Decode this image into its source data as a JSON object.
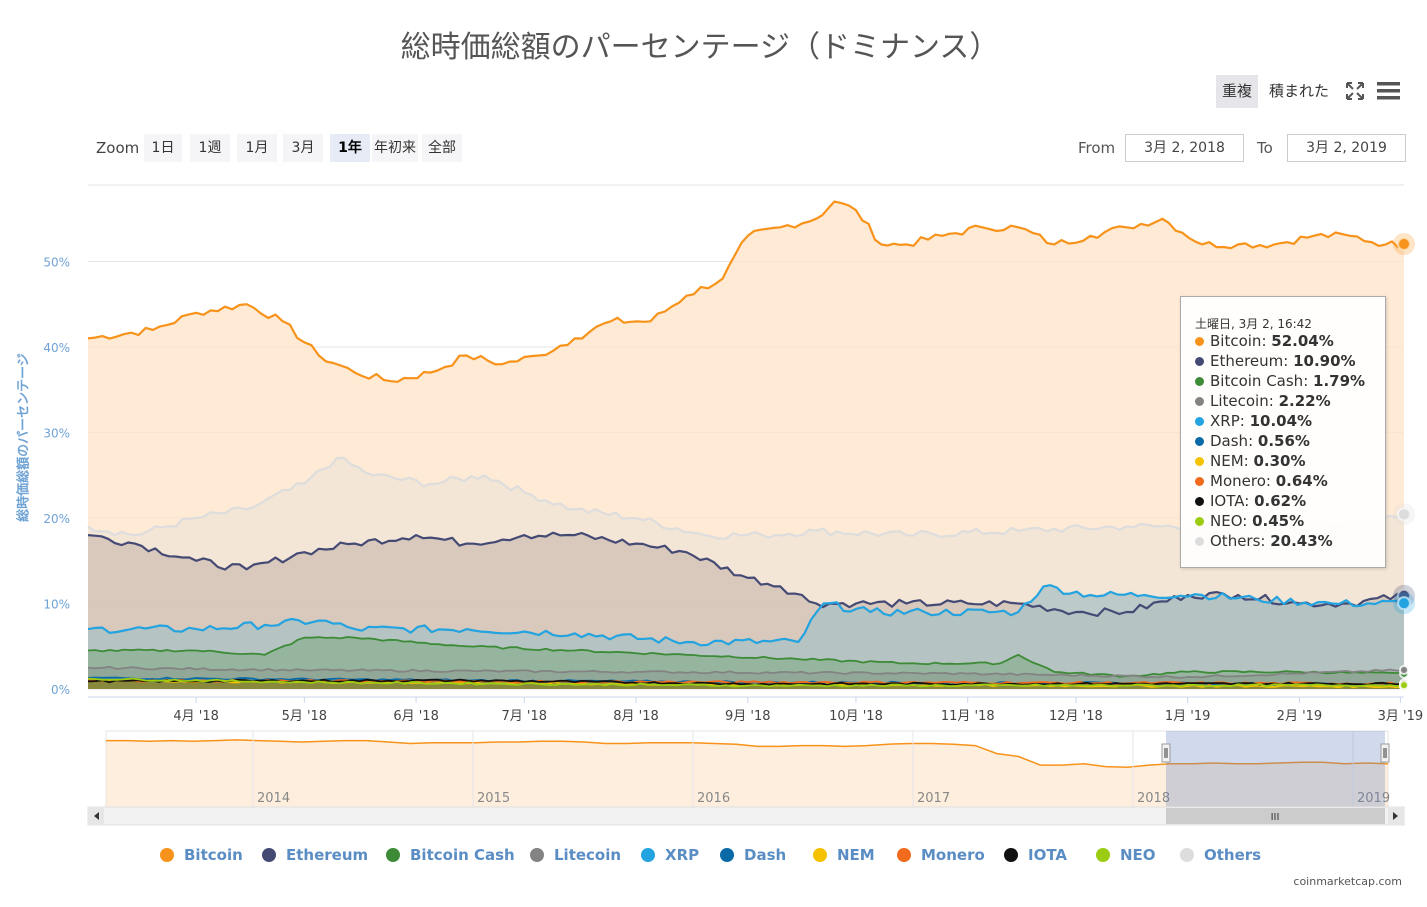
{
  "title": "総時価総額のパーセンテージ（ドミナンス）",
  "controls": {
    "overlap": "重複",
    "stacked": "積まれた"
  },
  "zoom": {
    "label": "Zoom",
    "buttons": [
      "1日",
      "1週",
      "1月",
      "3月",
      "1年",
      "年初来",
      "全部"
    ],
    "active": "1年"
  },
  "range": {
    "from_label": "From",
    "from": "3月 2, 2018",
    "to_label": "To",
    "to": "3月 2, 2019"
  },
  "navigator": {
    "years": [
      "2014",
      "2015",
      "2016",
      "2017",
      "2018",
      "2019"
    ],
    "handle_grip": "III"
  },
  "tooltip": {
    "header": "土曜日, 3月 2, 16:42",
    "rows": [
      {
        "name": "Bitcoin",
        "value": "52.04%"
      },
      {
        "name": "Ethereum",
        "value": "10.90%"
      },
      {
        "name": "Bitcoin Cash",
        "value": "1.79%"
      },
      {
        "name": "Litecoin",
        "value": "2.22%"
      },
      {
        "name": "XRP",
        "value": "10.04%"
      },
      {
        "name": "Dash",
        "value": "0.56%"
      },
      {
        "name": "NEM",
        "value": "0.30%"
      },
      {
        "name": "Monero",
        "value": "0.64%"
      },
      {
        "name": "IOTA",
        "value": "0.62%"
      },
      {
        "name": "NEO",
        "value": "0.45%"
      },
      {
        "name": "Others",
        "value": "20.43%"
      }
    ]
  },
  "credit": "coinmarketcap.com",
  "chart_data": {
    "type": "area",
    "title": "総時価総額のパーセンテージ（ドミナンス）",
    "ylabel": "総時価総額のパーセンテージ",
    "xlabel": "",
    "ylim": [
      0,
      59
    ],
    "yticks": [
      0,
      10,
      20,
      30,
      40,
      50
    ],
    "ytick_labels": [
      "0%",
      "10%",
      "20%",
      "30%",
      "40%",
      "50%"
    ],
    "x_ticks": [
      "4月 '18",
      "5月 '18",
      "6月 '18",
      "7月 '18",
      "8月 '18",
      "9月 '18",
      "10月 '18",
      "11月 '18",
      "12月 '18",
      "1月 '19",
      "2月 '19",
      "3月 '19"
    ],
    "x_range": [
      "2018-03-02",
      "2019-03-02"
    ],
    "legend_position": "bottom",
    "grid": true,
    "series": [
      {
        "name": "Bitcoin",
        "color": "#f7931a",
        "fill": "#fde3c7",
        "points": [
          [
            "2018-03-02",
            41
          ],
          [
            "2018-03-20",
            42
          ],
          [
            "2018-04-01",
            44
          ],
          [
            "2018-04-15",
            45
          ],
          [
            "2018-04-25",
            43
          ],
          [
            "2018-05-05",
            39
          ],
          [
            "2018-05-15",
            37
          ],
          [
            "2018-05-25",
            36
          ],
          [
            "2018-06-05",
            37
          ],
          [
            "2018-06-15",
            39
          ],
          [
            "2018-06-25",
            38
          ],
          [
            "2018-07-05",
            39
          ],
          [
            "2018-07-15",
            41
          ],
          [
            "2018-07-25",
            43
          ],
          [
            "2018-08-05",
            43
          ],
          [
            "2018-08-15",
            46
          ],
          [
            "2018-08-25",
            48
          ],
          [
            "2018-09-01",
            53
          ],
          [
            "2018-09-10",
            54
          ],
          [
            "2018-09-20",
            55
          ],
          [
            "2018-09-25",
            57
          ],
          [
            "2018-10-01",
            56
          ],
          [
            "2018-10-08",
            52
          ],
          [
            "2018-10-15",
            52
          ],
          [
            "2018-10-25",
            53
          ],
          [
            "2018-11-05",
            54
          ],
          [
            "2018-11-15",
            54
          ],
          [
            "2018-11-25",
            52
          ],
          [
            "2018-12-05",
            53
          ],
          [
            "2018-12-15",
            54
          ],
          [
            "2018-12-25",
            55
          ],
          [
            "2019-01-05",
            52
          ],
          [
            "2019-01-15",
            52
          ],
          [
            "2019-01-25",
            52
          ],
          [
            "2019-02-05",
            53
          ],
          [
            "2019-02-15",
            53
          ],
          [
            "2019-02-25",
            52
          ],
          [
            "2019-03-02",
            52.04
          ]
        ]
      },
      {
        "name": "Others",
        "color": "#dddddd",
        "fill": "#efe4d6",
        "points": [
          [
            "2018-03-02",
            19
          ],
          [
            "2018-03-15",
            18
          ],
          [
            "2018-04-01",
            20
          ],
          [
            "2018-04-15",
            21
          ],
          [
            "2018-05-01",
            24
          ],
          [
            "2018-05-10",
            27
          ],
          [
            "2018-05-20",
            25
          ],
          [
            "2018-06-05",
            24
          ],
          [
            "2018-06-20",
            25
          ],
          [
            "2018-07-01",
            23
          ],
          [
            "2018-07-15",
            21
          ],
          [
            "2018-08-01",
            20
          ],
          [
            "2018-08-20",
            18
          ],
          [
            "2018-09-05",
            18
          ],
          [
            "2018-09-20",
            18.5
          ],
          [
            "2018-10-15",
            18
          ],
          [
            "2018-11-15",
            18.5
          ],
          [
            "2018-12-15",
            19
          ],
          [
            "2019-01-15",
            19
          ],
          [
            "2019-02-15",
            19.5
          ],
          [
            "2019-03-02",
            20.43
          ]
        ]
      },
      {
        "name": "Ethereum",
        "color": "#454a75",
        "fill": "#cfbfb3",
        "points": [
          [
            "2018-03-02",
            18
          ],
          [
            "2018-03-15",
            17
          ],
          [
            "2018-04-01",
            15
          ],
          [
            "2018-04-15",
            14
          ],
          [
            "2018-05-01",
            16
          ],
          [
            "2018-05-15",
            17
          ],
          [
            "2018-06-01",
            18
          ],
          [
            "2018-06-15",
            17
          ],
          [
            "2018-07-01",
            18
          ],
          [
            "2018-07-15",
            18
          ],
          [
            "2018-08-01",
            17
          ],
          [
            "2018-08-15",
            16
          ],
          [
            "2018-09-01",
            13
          ],
          [
            "2018-09-10",
            12
          ],
          [
            "2018-09-20",
            10
          ],
          [
            "2018-10-01",
            10
          ],
          [
            "2018-10-15",
            10
          ],
          [
            "2018-11-01",
            10
          ],
          [
            "2018-11-15",
            10
          ],
          [
            "2018-12-01",
            9
          ],
          [
            "2018-12-15",
            9
          ],
          [
            "2019-01-01",
            11
          ],
          [
            "2019-01-15",
            11
          ],
          [
            "2019-02-01",
            10
          ],
          [
            "2019-02-15",
            10
          ],
          [
            "2019-03-02",
            10.9
          ]
        ]
      },
      {
        "name": "XRP",
        "color": "#23a3e0",
        "fill": "#a9c0c4",
        "points": [
          [
            "2018-03-02",
            7
          ],
          [
            "2018-04-01",
            7
          ],
          [
            "2018-04-20",
            7.5
          ],
          [
            "2018-05-05",
            8
          ],
          [
            "2018-05-15",
            7
          ],
          [
            "2018-06-15",
            7
          ],
          [
            "2018-07-15",
            6.5
          ],
          [
            "2018-08-15",
            5.5
          ],
          [
            "2018-09-15",
            5.5
          ],
          [
            "2018-09-22",
            10
          ],
          [
            "2018-10-05",
            9
          ],
          [
            "2018-10-20",
            9
          ],
          [
            "2018-11-15",
            9
          ],
          [
            "2018-11-22",
            12
          ],
          [
            "2018-12-05",
            11
          ],
          [
            "2018-12-20",
            11
          ],
          [
            "2019-01-05",
            11
          ],
          [
            "2019-01-20",
            10.5
          ],
          [
            "2019-02-10",
            10
          ],
          [
            "2019-03-02",
            10.04
          ]
        ]
      },
      {
        "name": "Bitcoin Cash",
        "color": "#3d8b37",
        "points": [
          [
            "2018-03-02",
            4.5
          ],
          [
            "2018-04-01",
            4.5
          ],
          [
            "2018-04-20",
            4
          ],
          [
            "2018-05-01",
            6
          ],
          [
            "2018-05-15",
            6
          ],
          [
            "2018-06-15",
            5
          ],
          [
            "2018-07-15",
            4.5
          ],
          [
            "2018-08-15",
            4
          ],
          [
            "2018-09-15",
            3.5
          ],
          [
            "2018-10-15",
            3
          ],
          [
            "2018-11-10",
            3
          ],
          [
            "2018-11-15",
            4
          ],
          [
            "2018-11-25",
            2
          ],
          [
            "2018-12-15",
            1.5
          ],
          [
            "2019-01-01",
            2
          ],
          [
            "2019-02-01",
            2
          ],
          [
            "2019-03-02",
            1.79
          ]
        ]
      },
      {
        "name": "Litecoin",
        "color": "#838383",
        "points": [
          [
            "2018-03-02",
            2.5
          ],
          [
            "2018-05-01",
            2.2
          ],
          [
            "2018-08-01",
            2
          ],
          [
            "2018-11-01",
            1.8
          ],
          [
            "2019-01-01",
            1.4
          ],
          [
            "2019-03-02",
            2.22
          ]
        ]
      },
      {
        "name": "Dash",
        "color": "#0a6aa7",
        "points": [
          [
            "2018-03-02",
            1.3
          ],
          [
            "2018-09-01",
            0.8
          ],
          [
            "2019-03-02",
            0.56
          ]
        ]
      },
      {
        "name": "NEM",
        "color": "#f5c200",
        "points": [
          [
            "2018-03-02",
            1.0
          ],
          [
            "2018-09-01",
            0.5
          ],
          [
            "2019-03-02",
            0.3
          ]
        ]
      },
      {
        "name": "Monero",
        "color": "#f26a1b",
        "points": [
          [
            "2018-03-02",
            1.0
          ],
          [
            "2018-09-01",
            0.8
          ],
          [
            "2019-03-02",
            0.64
          ]
        ]
      },
      {
        "name": "IOTA",
        "color": "#111111",
        "points": [
          [
            "2018-03-02",
            0.9
          ],
          [
            "2018-06-15",
            1.0
          ],
          [
            "2018-09-01",
            0.6
          ],
          [
            "2019-03-02",
            0.62
          ]
        ]
      },
      {
        "name": "NEO",
        "color": "#9ccc12",
        "points": [
          [
            "2018-03-02",
            1.2
          ],
          [
            "2018-05-01",
            0.8
          ],
          [
            "2018-09-01",
            0.4
          ],
          [
            "2019-03-02",
            0.45
          ]
        ]
      }
    ]
  }
}
